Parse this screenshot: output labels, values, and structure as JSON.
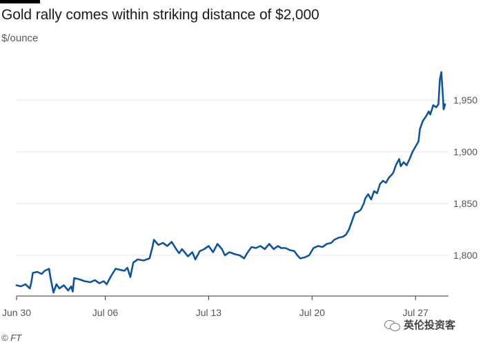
{
  "header": {
    "title": "Gold rally comes within striking distance of $2,000",
    "subtitle": "$/ounce"
  },
  "footer": {
    "source": "© FT",
    "watermark": "英伦投资客"
  },
  "colors": {
    "line": "#0f5499",
    "grid": "#e6e6e6",
    "axis": "#555555"
  },
  "chart_data": {
    "type": "line",
    "title": "Gold rally comes within striking distance of $2,000",
    "subtitle": "$/ounce",
    "xlabel": "",
    "ylabel": "",
    "ylim": [
      1760,
      1980
    ],
    "y_ticks": [
      1800,
      1850,
      1900,
      1950
    ],
    "y_tick_labels": [
      "1,800",
      "1,850",
      "1,900",
      "1,950"
    ],
    "x_ticks": [
      0,
      6,
      13,
      20,
      27
    ],
    "x_tick_labels": [
      "Jun 30",
      "Jul 06",
      "Jul 13",
      "Jul 20",
      "Jul 27"
    ],
    "x_unit": "days from Jun 30",
    "grid": "horizontal",
    "series": [
      {
        "values": [
          [
            0,
            1771
          ],
          [
            0.3,
            1770
          ],
          [
            0.6,
            1772
          ],
          [
            0.9,
            1768
          ],
          [
            1.0,
            1774
          ],
          [
            1.1,
            1783
          ],
          [
            1.4,
            1784
          ],
          [
            1.7,
            1782
          ],
          [
            1.9,
            1785
          ],
          [
            2.2,
            1787
          ],
          [
            2.3,
            1778
          ],
          [
            2.5,
            1764
          ],
          [
            2.7,
            1772
          ],
          [
            2.9,
            1768
          ],
          [
            3.2,
            1771
          ],
          [
            3.5,
            1766
          ],
          [
            3.7,
            1770
          ],
          [
            3.8,
            1765
          ],
          [
            3.9,
            1778
          ],
          [
            4.2,
            1777
          ],
          [
            4.6,
            1775
          ],
          [
            5.0,
            1774
          ],
          [
            5.3,
            1776
          ],
          [
            5.6,
            1773
          ],
          [
            5.9,
            1775
          ],
          [
            6.1,
            1772
          ],
          [
            6.4,
            1780
          ],
          [
            6.7,
            1787
          ],
          [
            7.0,
            1786
          ],
          [
            7.3,
            1785
          ],
          [
            7.5,
            1788
          ],
          [
            7.7,
            1779
          ],
          [
            7.9,
            1793
          ],
          [
            8.2,
            1796
          ],
          [
            8.6,
            1795
          ],
          [
            9.0,
            1797
          ],
          [
            9.2,
            1808
          ],
          [
            9.3,
            1815
          ],
          [
            9.6,
            1810
          ],
          [
            9.9,
            1812
          ],
          [
            10.2,
            1809
          ],
          [
            10.5,
            1813
          ],
          [
            10.8,
            1806
          ],
          [
            11.0,
            1802
          ],
          [
            11.2,
            1806
          ],
          [
            11.6,
            1799
          ],
          [
            11.9,
            1803
          ],
          [
            12.1,
            1796
          ],
          [
            12.4,
            1804
          ],
          [
            12.7,
            1806
          ],
          [
            13.0,
            1809
          ],
          [
            13.3,
            1803
          ],
          [
            13.6,
            1811
          ],
          [
            13.9,
            1806
          ],
          [
            14.1,
            1800
          ],
          [
            14.4,
            1803
          ],
          [
            14.8,
            1801
          ],
          [
            15.1,
            1800
          ],
          [
            15.4,
            1797
          ],
          [
            15.6,
            1802
          ],
          [
            15.9,
            1808
          ],
          [
            16.2,
            1807
          ],
          [
            16.5,
            1809
          ],
          [
            16.8,
            1806
          ],
          [
            17.1,
            1811
          ],
          [
            17.4,
            1806
          ],
          [
            17.7,
            1809
          ],
          [
            17.9,
            1807
          ],
          [
            18.2,
            1807
          ],
          [
            18.5,
            1805
          ],
          [
            18.8,
            1804
          ],
          [
            19.0,
            1800
          ],
          [
            19.2,
            1797
          ],
          [
            19.5,
            1798
          ],
          [
            19.8,
            1800
          ],
          [
            20.1,
            1807
          ],
          [
            20.4,
            1809
          ],
          [
            20.7,
            1808
          ],
          [
            21.0,
            1811
          ],
          [
            21.3,
            1812
          ],
          [
            21.5,
            1815
          ],
          [
            21.8,
            1817
          ],
          [
            22.1,
            1818
          ],
          [
            22.3,
            1820
          ],
          [
            22.5,
            1825
          ],
          [
            22.7,
            1833
          ],
          [
            22.9,
            1841
          ],
          [
            23.1,
            1842
          ],
          [
            23.3,
            1844
          ],
          [
            23.5,
            1850
          ],
          [
            23.6,
            1855
          ],
          [
            23.8,
            1859
          ],
          [
            24.0,
            1854
          ],
          [
            24.2,
            1862
          ],
          [
            24.4,
            1860
          ],
          [
            24.6,
            1869
          ],
          [
            24.8,
            1872
          ],
          [
            25.0,
            1870
          ],
          [
            25.2,
            1875
          ],
          [
            25.4,
            1878
          ],
          [
            25.5,
            1880
          ],
          [
            25.7,
            1888
          ],
          [
            25.9,
            1893
          ],
          [
            26.0,
            1886
          ],
          [
            26.2,
            1890
          ],
          [
            26.4,
            1887
          ],
          [
            26.6,
            1893
          ],
          [
            26.8,
            1900
          ],
          [
            27.0,
            1905
          ],
          [
            27.2,
            1910
          ],
          [
            27.3,
            1922
          ],
          [
            27.5,
            1930
          ],
          [
            27.7,
            1934
          ],
          [
            27.9,
            1939
          ],
          [
            28.0,
            1936
          ],
          [
            28.2,
            1945
          ],
          [
            28.4,
            1943
          ],
          [
            28.55,
            1946
          ],
          [
            28.65,
            1970
          ],
          [
            28.75,
            1977
          ],
          [
            28.85,
            1955
          ],
          [
            28.9,
            1941
          ],
          [
            28.95,
            1943
          ],
          [
            29.0,
            1946
          ]
        ]
      }
    ]
  }
}
